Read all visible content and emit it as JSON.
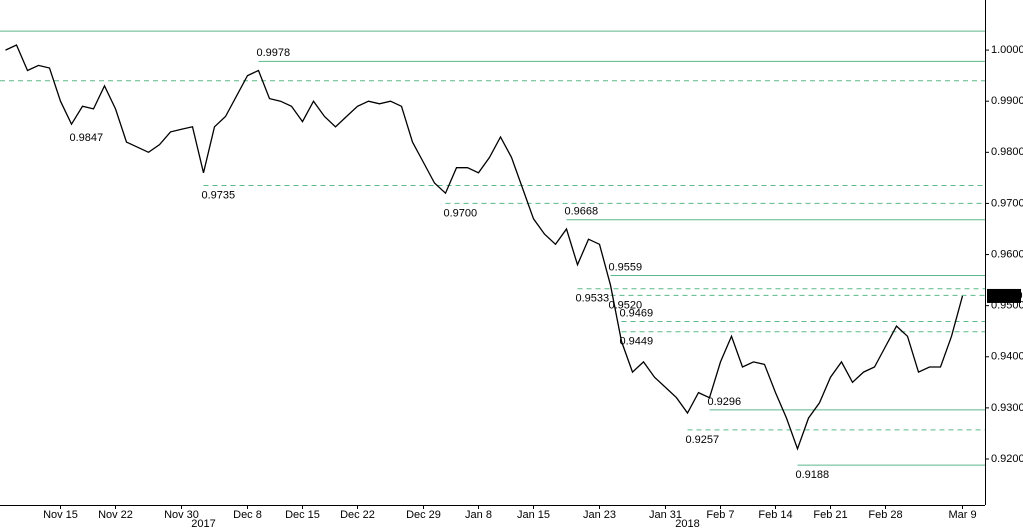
{
  "chart_data": {
    "type": "line",
    "categories": [
      null,
      null,
      null,
      null,
      null,
      "Nov 15",
      null,
      null,
      null,
      null,
      "Nov 22",
      null,
      null,
      null,
      null,
      null,
      "Nov 30",
      null,
      null,
      null,
      null,
      null,
      "Dec 8",
      null,
      null,
      null,
      null,
      "Dec 15",
      null,
      null,
      null,
      null,
      "Dec 22",
      null,
      null,
      null,
      null,
      null,
      "Dec 29",
      null,
      null,
      null,
      null,
      "Jan 8",
      null,
      null,
      null,
      null,
      "Jan 15",
      null,
      null,
      null,
      null,
      null,
      "Jan 23",
      null,
      null,
      null,
      null,
      null,
      "Jan 31",
      null,
      null,
      null,
      null,
      "Feb 7",
      null,
      null,
      null,
      null,
      "Feb 14",
      null,
      null,
      null,
      null,
      "Feb 21",
      null,
      null,
      null,
      null,
      "Feb 28",
      null,
      null,
      null,
      null,
      null,
      null,
      "Mar 9"
    ],
    "values": [
      1.0,
      1.001,
      0.996,
      0.997,
      0.9965,
      0.99,
      0.9855,
      0.989,
      0.9885,
      0.993,
      0.9885,
      0.982,
      0.981,
      0.98,
      0.9815,
      0.984,
      0.9845,
      0.985,
      0.976,
      0.985,
      0.987,
      0.991,
      0.995,
      0.996,
      0.9905,
      0.99,
      0.989,
      0.986,
      0.99,
      0.987,
      0.985,
      0.987,
      0.989,
      0.99,
      0.9895,
      0.99,
      0.989,
      0.982,
      0.978,
      0.974,
      0.972,
      0.977,
      0.977,
      0.976,
      0.979,
      0.983,
      0.979,
      0.973,
      0.967,
      0.964,
      0.962,
      0.965,
      0.958,
      0.963,
      0.962,
      0.954,
      0.943,
      0.937,
      0.939,
      0.936,
      0.934,
      0.932,
      0.929,
      0.933,
      0.932,
      0.939,
      0.944,
      0.938,
      0.939,
      0.9385,
      0.933,
      0.928,
      0.922,
      0.928,
      0.931,
      0.936,
      0.939,
      0.935,
      0.937,
      0.938,
      0.942,
      0.946,
      0.944,
      0.937,
      0.938,
      0.938,
      0.944,
      0.9519
    ],
    "color": "#000000",
    "x_group_labels": [
      "2017",
      "2018"
    ],
    "ylim": [
      0.911,
      1.0098
    ],
    "yticks": [
      {
        "value": 0.92,
        "label": "0.9200"
      },
      {
        "value": 0.93,
        "label": "0.9300"
      },
      {
        "value": 0.94,
        "label": "0.9400"
      },
      {
        "value": 0.95,
        "label": "0.9500"
      },
      {
        "value": 0.96,
        "label": "0.9600"
      },
      {
        "value": 0.97,
        "label": "0.9700"
      },
      {
        "value": 0.98,
        "label": "0.9800"
      },
      {
        "value": 0.99,
        "label": "0.9900"
      },
      {
        "value": 1.0,
        "label": "1.0000"
      }
    ],
    "level_color": "#5cb88a",
    "levels": [
      {
        "value": 1.0037,
        "style": "solid"
      },
      {
        "value": 0.9978,
        "style": "solid",
        "label": "0.9978",
        "x": 23,
        "position": "above"
      },
      {
        "value": 0.994,
        "style": "dashed"
      },
      {
        "value": 0.9847,
        "style": "none",
        "label": "0.9847",
        "x": 6,
        "position": "below"
      },
      {
        "value": 0.9735,
        "style": "dashed",
        "label": "0.9735",
        "x": 18,
        "position": "below"
      },
      {
        "value": 0.97,
        "style": "dashed",
        "label": "0.9700",
        "x": 40,
        "position": "below"
      },
      {
        "value": 0.9668,
        "style": "solid",
        "label": "0.9668",
        "x": 51,
        "position": "above"
      },
      {
        "value": 0.9559,
        "style": "solid",
        "label": "0.9559",
        "x": 55,
        "position": "above"
      },
      {
        "value": 0.9533,
        "style": "dashed",
        "label": "0.9533",
        "x": 52,
        "position": "below"
      },
      {
        "value": 0.952,
        "style": "dashed",
        "label": "0.9520",
        "x": 55,
        "position": "below"
      },
      {
        "value": 0.9469,
        "style": "dashed",
        "label": "0.9469",
        "x": 56,
        "position": "above"
      },
      {
        "value": 0.9449,
        "style": "dashed",
        "label": "0.9449",
        "x": 56,
        "position": "below"
      },
      {
        "value": 0.9296,
        "style": "solid",
        "label": "0.9296",
        "x": 64,
        "position": "above"
      },
      {
        "value": 0.9257,
        "style": "dashed",
        "label": "0.9257",
        "x": 62,
        "position": "below"
      },
      {
        "value": 0.9188,
        "style": "solid",
        "label": "0.9188",
        "x": 72,
        "position": "below"
      }
    ],
    "last_value": 0.9519
  }
}
